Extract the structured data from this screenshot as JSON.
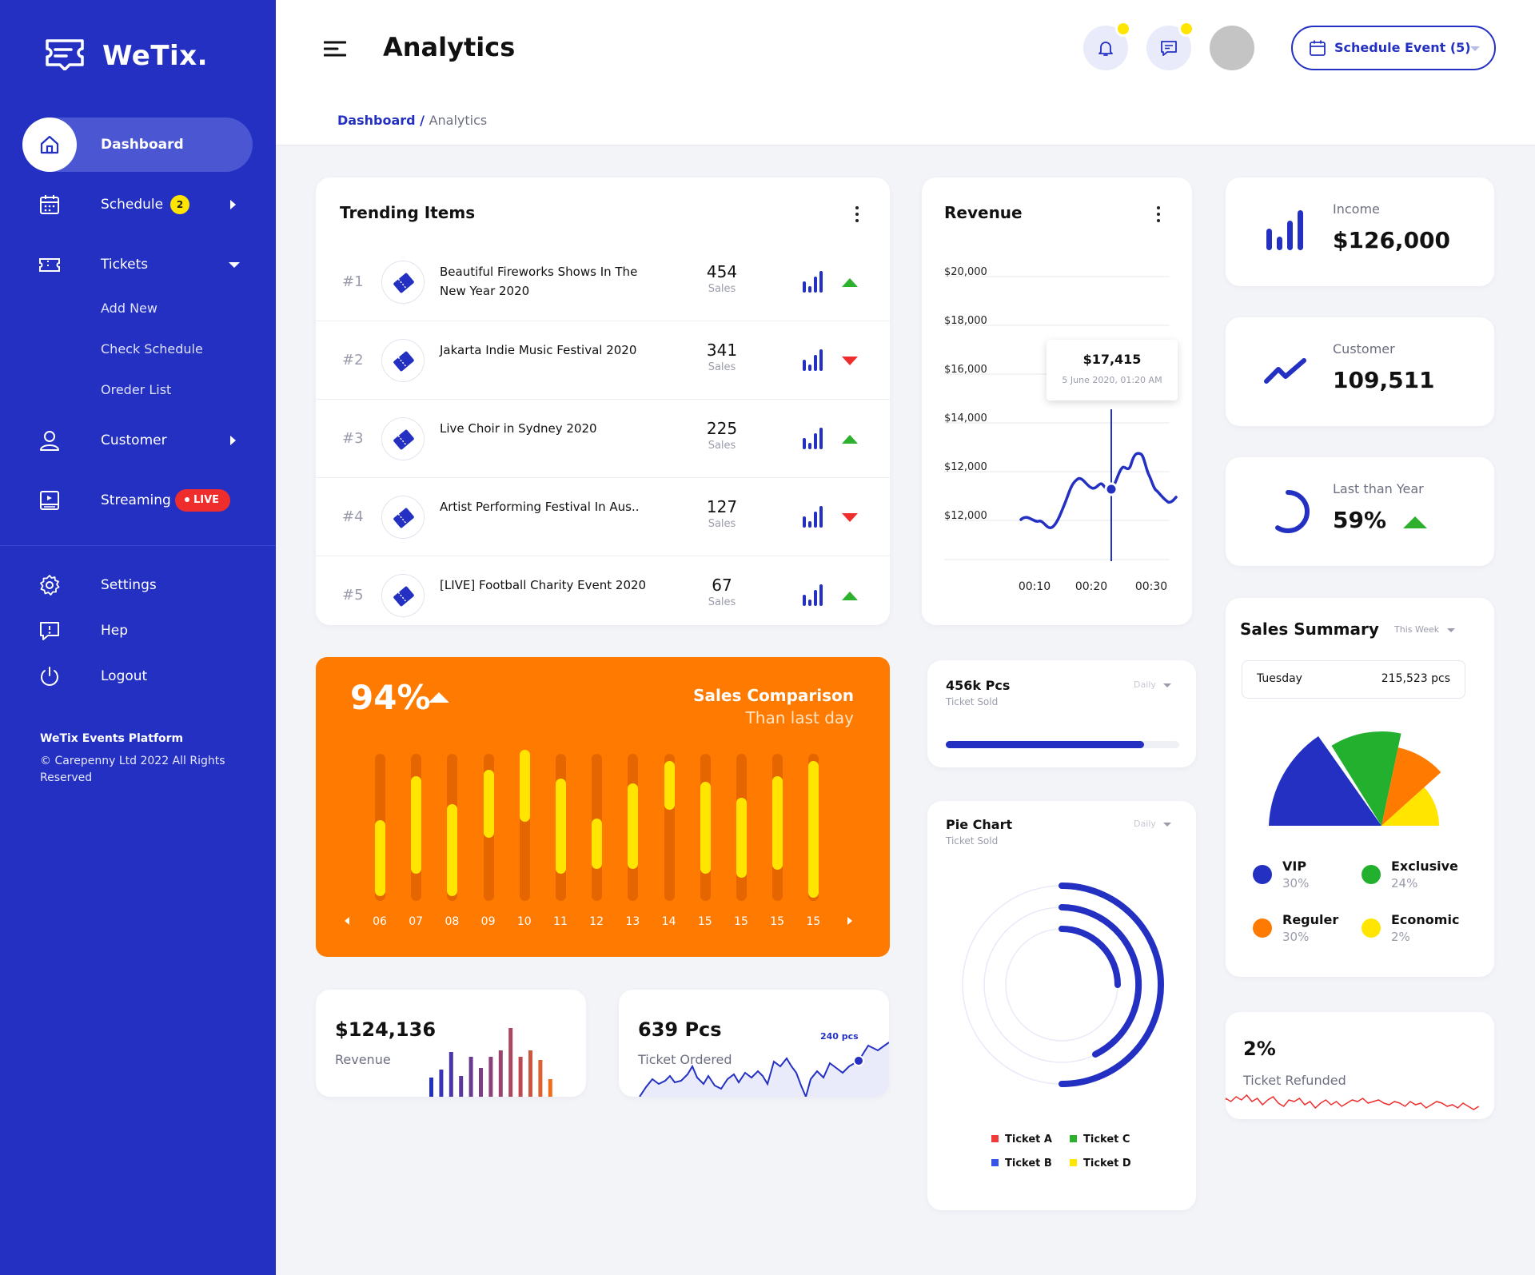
{
  "brand": {
    "name": "WeTix."
  },
  "sidebar": {
    "dashboard": "Dashboard",
    "schedule": "Schedule",
    "schedule_badge": "2",
    "tickets": "Tickets",
    "tickets_sub": [
      "Add New",
      "Check Schedule",
      "Oreder List"
    ],
    "customer": "Customer",
    "streaming": "Streaming",
    "live_badge": "LIVE",
    "settings": "Settings",
    "help": "Hep",
    "logout": "Logout",
    "footer_title": "WeTix Events Platform",
    "footer_text": "© Carepenny Ltd 2022  All Rights Reserved"
  },
  "header": {
    "title": "Analytics",
    "schedule_button": "Schedule Event (5)",
    "breadcrumb": {
      "root": "Dashboard",
      "sep": " / ",
      "current": "Analytics"
    }
  },
  "trending": {
    "title": "Trending Items",
    "items": [
      {
        "rank": "#1",
        "name": "Beautiful Fireworks Shows In The New Year 2020",
        "sales": "454",
        "sales_label": "Sales",
        "trend": "up"
      },
      {
        "rank": "#2",
        "name": "Jakarta Indie Music Festival 2020",
        "sales": "341",
        "sales_label": "Sales",
        "trend": "down"
      },
      {
        "rank": "#3",
        "name": "Live Choir in Sydney 2020",
        "sales": "225",
        "sales_label": "Sales",
        "trend": "up"
      },
      {
        "rank": "#4",
        "name": "Artist Performing Festival In Aus..",
        "sales": "127",
        "sales_label": "Sales",
        "trend": "down"
      },
      {
        "rank": "#5",
        "name": "[LIVE] Football Charity Event 2020",
        "sales": "67",
        "sales_label": "Sales",
        "trend": "up"
      }
    ]
  },
  "revenue": {
    "title": "Revenue",
    "y_ticks": [
      "$20,000",
      "$18,000",
      "$16,000",
      "$14,000",
      "$12,000",
      "$12,000"
    ],
    "x_ticks": [
      "00:10",
      "00:20",
      "00:30"
    ],
    "tooltip_value": "$17,415",
    "tooltip_date": "5 June 2020, 01:20 AM"
  },
  "income": {
    "label": "Income",
    "value": "$126,000"
  },
  "customer": {
    "label": "Customer",
    "value": "109,511"
  },
  "last_year": {
    "label": "Last than Year",
    "value": "59%",
    "progress": 0.59
  },
  "sales_comparison": {
    "percent": "94%",
    "title": "Sales Comparison",
    "subtitle": "Than last day",
    "labels": [
      "06",
      "07",
      "08",
      "09",
      "10",
      "11",
      "12",
      "13",
      "14",
      "15",
      "15",
      "15",
      "15"
    ]
  },
  "pcs_sold": {
    "value": "456k Pcs",
    "label": "Ticket Sold",
    "period": "Daily",
    "progress": 0.85
  },
  "pie_chart": {
    "title": "Pie Chart",
    "subtitle": "Ticket Sold",
    "period": "Daily",
    "legend": [
      "Ticket A",
      "Ticket C",
      "Ticket B",
      "Ticket D"
    ],
    "colors": [
      "#ef3b3b",
      "#2db02d",
      "#3654e8",
      "#ffe500"
    ]
  },
  "sales_summary": {
    "title": "Sales Summary",
    "period": "This Week",
    "day": "Tuesday",
    "day_value": "215,523 pcs",
    "legend": [
      {
        "name": "VIP",
        "pct": "30%",
        "color": "#2330c2"
      },
      {
        "name": "Exclusive",
        "pct": "24%",
        "color": "#22b02e"
      },
      {
        "name": "Reguler",
        "pct": "30%",
        "color": "#ff7a00"
      },
      {
        "name": "Economic",
        "pct": "2%",
        "color": "#ffe500"
      }
    ]
  },
  "revenue_small": {
    "value": "$124,136",
    "label": "Revenue"
  },
  "ticket_ordered": {
    "value": "639 Pcs",
    "label": "Ticket Ordered",
    "peak": "240 pcs"
  },
  "refunded": {
    "value": "2%",
    "label": "Ticket Refunded"
  },
  "colors": {
    "primary": "#2330c2",
    "accent": "#ff7a00",
    "yellow": "#ffe500",
    "green": "#2db02d",
    "red": "#ef2d2d"
  }
}
